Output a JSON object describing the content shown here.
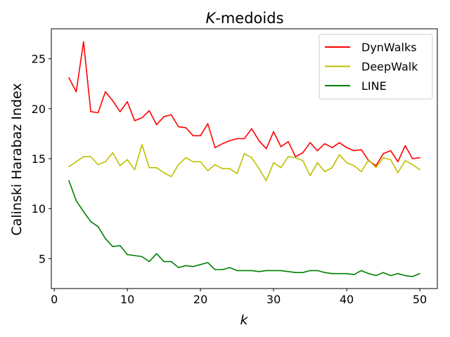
{
  "chart_data": {
    "type": "line",
    "title_italic": "K",
    "title_rest": "-medoids",
    "xlabel": "k",
    "ylabel": "Calinski Harabaz Index",
    "xlim": [
      -0.4,
      52.4
    ],
    "ylim": [
      2.0,
      28.0
    ],
    "xticks": [
      0,
      10,
      20,
      30,
      40,
      50
    ],
    "yticks": [
      5,
      10,
      15,
      20,
      25
    ],
    "legend_position": "top-right",
    "x": [
      2,
      3,
      4,
      5,
      6,
      7,
      8,
      9,
      10,
      11,
      12,
      13,
      14,
      15,
      16,
      17,
      18,
      19,
      20,
      21,
      22,
      23,
      24,
      25,
      26,
      27,
      28,
      29,
      30,
      31,
      32,
      33,
      34,
      35,
      36,
      37,
      38,
      39,
      40,
      41,
      42,
      43,
      44,
      45,
      46,
      47,
      48,
      49,
      50
    ],
    "series": [
      {
        "name": "DynWalks",
        "color": "#ff0000",
        "values": [
          23.1,
          21.7,
          26.7,
          19.7,
          19.6,
          21.7,
          20.8,
          19.7,
          20.7,
          18.8,
          19.1,
          19.8,
          18.4,
          19.2,
          19.4,
          18.2,
          18.1,
          17.3,
          17.3,
          18.5,
          16.1,
          16.5,
          16.8,
          17.0,
          17.0,
          18.0,
          16.8,
          16.0,
          17.7,
          16.2,
          16.7,
          15.2,
          15.6,
          16.6,
          15.8,
          16.5,
          16.1,
          16.6,
          16.1,
          15.8,
          15.9,
          14.8,
          14.3,
          15.5,
          15.8,
          14.7,
          16.3,
          15.0,
          15.1
        ]
      },
      {
        "name": "DeepWalk",
        "color": "#bfbf00",
        "values": [
          14.2,
          14.7,
          15.2,
          15.2,
          14.4,
          14.7,
          15.6,
          14.3,
          14.9,
          13.9,
          16.4,
          14.1,
          14.1,
          13.6,
          13.2,
          14.4,
          15.1,
          14.7,
          14.7,
          13.8,
          14.4,
          14.0,
          14.0,
          13.5,
          15.5,
          15.1,
          14.0,
          12.8,
          14.6,
          14.1,
          15.2,
          15.1,
          14.8,
          13.3,
          14.6,
          13.7,
          14.1,
          15.4,
          14.6,
          14.3,
          13.7,
          14.9,
          14.1,
          15.1,
          14.9,
          13.6,
          14.8,
          14.4,
          13.9
        ]
      },
      {
        "name": "LINE",
        "color": "#008000",
        "values": [
          12.8,
          10.8,
          9.7,
          8.7,
          8.2,
          7.0,
          6.2,
          6.3,
          5.4,
          5.3,
          5.2,
          4.7,
          5.5,
          4.7,
          4.7,
          4.1,
          4.3,
          4.2,
          4.4,
          4.6,
          3.9,
          3.9,
          4.1,
          3.8,
          3.8,
          3.8,
          3.7,
          3.8,
          3.8,
          3.8,
          3.7,
          3.6,
          3.6,
          3.8,
          3.8,
          3.6,
          3.5,
          3.5,
          3.5,
          3.4,
          3.8,
          3.5,
          3.3,
          3.6,
          3.3,
          3.5,
          3.3,
          3.2,
          3.5
        ]
      }
    ]
  }
}
